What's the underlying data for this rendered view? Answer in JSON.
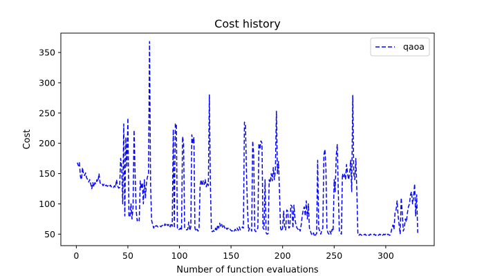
{
  "chart_data": {
    "type": "line",
    "title": "Cost history",
    "xlabel": "Number of function evaluations",
    "ylabel": "Cost",
    "xlim": [
      -15,
      347
    ],
    "ylim": [
      31,
      382
    ],
    "xticks": [
      0,
      50,
      100,
      150,
      200,
      250,
      300
    ],
    "yticks": [
      50,
      100,
      150,
      200,
      250,
      300,
      350
    ],
    "grid": false,
    "legend_position": "top-right",
    "series": [
      {
        "name": "qaoa",
        "color": "#0000ff",
        "line_style": "dashed",
        "points": [
          [
            1,
            168
          ],
          [
            2,
            163
          ],
          [
            3,
            168
          ],
          [
            4,
            145
          ],
          [
            5,
            140
          ],
          [
            6,
            160
          ],
          [
            7,
            148
          ],
          [
            8,
            147
          ],
          [
            9,
            151
          ],
          [
            10,
            143
          ],
          [
            11,
            140
          ],
          [
            12,
            136
          ],
          [
            13,
            140
          ],
          [
            14,
            133
          ],
          [
            15,
            125
          ],
          [
            16,
            135
          ],
          [
            17,
            128
          ],
          [
            18,
            135
          ],
          [
            19,
            133
          ],
          [
            20,
            140
          ],
          [
            21,
            137
          ],
          [
            22,
            150
          ],
          [
            23,
            135
          ],
          [
            24,
            132
          ],
          [
            25,
            133
          ],
          [
            26,
            130
          ],
          [
            27,
            133
          ],
          [
            28,
            130
          ],
          [
            29,
            131
          ],
          [
            30,
            129
          ],
          [
            31,
            130
          ],
          [
            32,
            128
          ],
          [
            33,
            131
          ],
          [
            34,
            128
          ],
          [
            35,
            129
          ],
          [
            36,
            127
          ],
          [
            37,
            130
          ],
          [
            38,
            127
          ],
          [
            39,
            140
          ],
          [
            40,
            130
          ],
          [
            41,
            126
          ],
          [
            42,
            127
          ],
          [
            43,
            175
          ],
          [
            44,
            160
          ],
          [
            45,
            100
          ],
          [
            46,
            232
          ],
          [
            47,
            80
          ],
          [
            48,
            210
          ],
          [
            49,
            160
          ],
          [
            50,
            242
          ],
          [
            51,
            80
          ],
          [
            52,
            78
          ],
          [
            53,
            100
          ],
          [
            54,
            75
          ],
          [
            55,
            95
          ],
          [
            56,
            222
          ],
          [
            57,
            150
          ],
          [
            58,
            90
          ],
          [
            59,
            72
          ],
          [
            60,
            75
          ],
          [
            61,
            72
          ],
          [
            62,
            138
          ],
          [
            63,
            125
          ],
          [
            64,
            135
          ],
          [
            65,
            100
          ],
          [
            66,
            140
          ],
          [
            67,
            110
          ],
          [
            68,
            135
          ],
          [
            69,
            145
          ],
          [
            70,
            148
          ],
          [
            71,
            368
          ],
          [
            72,
            130
          ],
          [
            73,
            73
          ],
          [
            74,
            66
          ],
          [
            75,
            60
          ],
          [
            76,
            65
          ],
          [
            77,
            63
          ],
          [
            78,
            64
          ],
          [
            79,
            62
          ],
          [
            80,
            63
          ],
          [
            81,
            64
          ],
          [
            82,
            62
          ],
          [
            83,
            64
          ],
          [
            84,
            65
          ],
          [
            85,
            63
          ],
          [
            86,
            67
          ],
          [
            87,
            63
          ],
          [
            88,
            66
          ],
          [
            89,
            64
          ],
          [
            90,
            67
          ],
          [
            91,
            62
          ],
          [
            92,
            68
          ],
          [
            93,
            63
          ],
          [
            94,
            223
          ],
          [
            95,
            60
          ],
          [
            96,
            233
          ],
          [
            97,
            230
          ],
          [
            98,
            60
          ],
          [
            99,
            57
          ],
          [
            100,
            58
          ],
          [
            101,
            60
          ],
          [
            102,
            56
          ],
          [
            103,
            211
          ],
          [
            104,
            200
          ],
          [
            105,
            60
          ],
          [
            106,
            58
          ],
          [
            107,
            57
          ],
          [
            108,
            58
          ],
          [
            109,
            70
          ],
          [
            110,
            56
          ],
          [
            111,
            62
          ],
          [
            112,
            214
          ],
          [
            113,
            200
          ],
          [
            114,
            210
          ],
          [
            115,
            60
          ],
          [
            116,
            55
          ],
          [
            117,
            58
          ],
          [
            118,
            55
          ],
          [
            119,
            59
          ],
          [
            120,
            130
          ],
          [
            121,
            140
          ],
          [
            122,
            130
          ],
          [
            123,
            138
          ],
          [
            124,
            132
          ],
          [
            125,
            140
          ],
          [
            126,
            128
          ],
          [
            127,
            135
          ],
          [
            128,
            130
          ],
          [
            129,
            280
          ],
          [
            130,
            130
          ],
          [
            131,
            55
          ],
          [
            132,
            54
          ],
          [
            133,
            56
          ],
          [
            134,
            54
          ],
          [
            135,
            60
          ],
          [
            136,
            55
          ],
          [
            137,
            65
          ],
          [
            138,
            60
          ],
          [
            139,
            68
          ],
          [
            140,
            62
          ],
          [
            141,
            66
          ],
          [
            142,
            60
          ],
          [
            143,
            64
          ],
          [
            144,
            60
          ],
          [
            145,
            62
          ],
          [
            146,
            58
          ],
          [
            147,
            60
          ],
          [
            148,
            57
          ],
          [
            149,
            58
          ],
          [
            150,
            56
          ],
          [
            151,
            55
          ],
          [
            152,
            57
          ],
          [
            153,
            55
          ],
          [
            154,
            58
          ],
          [
            155,
            56
          ],
          [
            156,
            60
          ],
          [
            157,
            56
          ],
          [
            158,
            62
          ],
          [
            159,
            57
          ],
          [
            160,
            58
          ],
          [
            161,
            62
          ],
          [
            162,
            60
          ],
          [
            163,
            235
          ],
          [
            164,
            230
          ],
          [
            165,
            150
          ],
          [
            166,
            90
          ],
          [
            167,
            55
          ],
          [
            168,
            60
          ],
          [
            169,
            60
          ],
          [
            170,
            55
          ],
          [
            171,
            204
          ],
          [
            172,
            180
          ],
          [
            173,
            56
          ],
          [
            174,
            54
          ],
          [
            175,
            57
          ],
          [
            176,
            60
          ],
          [
            177,
            200
          ],
          [
            178,
            190
          ],
          [
            179,
            204
          ],
          [
            180,
            200
          ],
          [
            181,
            60
          ],
          [
            182,
            58
          ],
          [
            183,
            140
          ],
          [
            184,
            52
          ],
          [
            185,
            50
          ],
          [
            186,
            51
          ],
          [
            187,
            140
          ],
          [
            188,
            135
          ],
          [
            189,
            150
          ],
          [
            190,
            138
          ],
          [
            191,
            160
          ],
          [
            192,
            140
          ],
          [
            193,
            155
          ],
          [
            194,
            253
          ],
          [
            195,
            150
          ],
          [
            196,
            170
          ],
          [
            197,
            120
          ],
          [
            198,
            60
          ],
          [
            199,
            55
          ],
          [
            200,
            60
          ],
          [
            201,
            88
          ],
          [
            202,
            60
          ],
          [
            203,
            57
          ],
          [
            204,
            90
          ],
          [
            205,
            88
          ],
          [
            206,
            60
          ],
          [
            207,
            62
          ],
          [
            208,
            98
          ],
          [
            209,
            96
          ],
          [
            210,
            60
          ],
          [
            211,
            98
          ],
          [
            212,
            75
          ],
          [
            213,
            65
          ],
          [
            214,
            60
          ],
          [
            215,
            58
          ],
          [
            216,
            60
          ],
          [
            217,
            55
          ],
          [
            218,
            65
          ],
          [
            219,
            80
          ],
          [
            220,
            90
          ],
          [
            221,
            95
          ],
          [
            222,
            80
          ],
          [
            223,
            105
          ],
          [
            224,
            75
          ],
          [
            225,
            100
          ],
          [
            226,
            60
          ],
          [
            227,
            55
          ],
          [
            228,
            50
          ],
          [
            229,
            48
          ],
          [
            230,
            52
          ],
          [
            231,
            46
          ],
          [
            232,
            49
          ],
          [
            233,
            51
          ],
          [
            234,
            172
          ],
          [
            235,
            60
          ],
          [
            236,
            55
          ],
          [
            237,
            50
          ],
          [
            238,
            56
          ],
          [
            239,
            60
          ],
          [
            240,
            180
          ],
          [
            241,
            190
          ],
          [
            242,
            160
          ],
          [
            243,
            58
          ],
          [
            244,
            52
          ],
          [
            245,
            50
          ],
          [
            246,
            55
          ],
          [
            247,
            50
          ],
          [
            248,
            58
          ],
          [
            249,
            55
          ],
          [
            250,
            140
          ],
          [
            251,
            120
          ],
          [
            252,
            180
          ],
          [
            253,
            198
          ],
          [
            254,
            120
          ],
          [
            255,
            55
          ],
          [
            256,
            52
          ],
          [
            257,
            50
          ],
          [
            258,
            150
          ],
          [
            259,
            145
          ],
          [
            260,
            150
          ],
          [
            261,
            140
          ],
          [
            262,
            165
          ],
          [
            263,
            150
          ],
          [
            264,
            140
          ],
          [
            265,
            150
          ],
          [
            266,
            172
          ],
          [
            267,
            120
          ],
          [
            268,
            279
          ],
          [
            269,
            150
          ],
          [
            270,
            140
          ],
          [
            271,
            175
          ],
          [
            272,
            120
          ],
          [
            273,
            50
          ],
          [
            274,
            48
          ],
          [
            275,
            50
          ],
          [
            276,
            49
          ],
          [
            277,
            48
          ],
          [
            278,
            50
          ],
          [
            279,
            49
          ],
          [
            280,
            50
          ],
          [
            281,
            48
          ],
          [
            282,
            50
          ],
          [
            283,
            49
          ],
          [
            284,
            48
          ],
          [
            285,
            50
          ],
          [
            286,
            49
          ],
          [
            287,
            48
          ],
          [
            288,
            49
          ],
          [
            289,
            50
          ],
          [
            290,
            48
          ],
          [
            291,
            49
          ],
          [
            292,
            50
          ],
          [
            293,
            48
          ],
          [
            294,
            50
          ],
          [
            295,
            49
          ],
          [
            296,
            50
          ],
          [
            297,
            48
          ],
          [
            298,
            50
          ],
          [
            299,
            49
          ],
          [
            300,
            50
          ],
          [
            301,
            48
          ],
          [
            302,
            50
          ],
          [
            303,
            49
          ],
          [
            304,
            48
          ],
          [
            305,
            52
          ],
          [
            306,
            60
          ],
          [
            307,
            65
          ],
          [
            308,
            58
          ],
          [
            309,
            85
          ],
          [
            310,
            90
          ],
          [
            311,
            105
          ],
          [
            312,
            80
          ],
          [
            313,
            65
          ],
          [
            314,
            50
          ],
          [
            315,
            110
          ],
          [
            316,
            85
          ],
          [
            317,
            55
          ],
          [
            318,
            60
          ],
          [
            319,
            75
          ],
          [
            320,
            70
          ],
          [
            321,
            85
          ],
          [
            322,
            95
          ],
          [
            323,
            100
          ],
          [
            324,
            115
          ],
          [
            325,
            120
          ],
          [
            326,
            100
          ],
          [
            327,
            112
          ],
          [
            328,
            133
          ],
          [
            329,
            80
          ],
          [
            330,
            115
          ],
          [
            331,
            52
          ]
        ]
      }
    ]
  }
}
